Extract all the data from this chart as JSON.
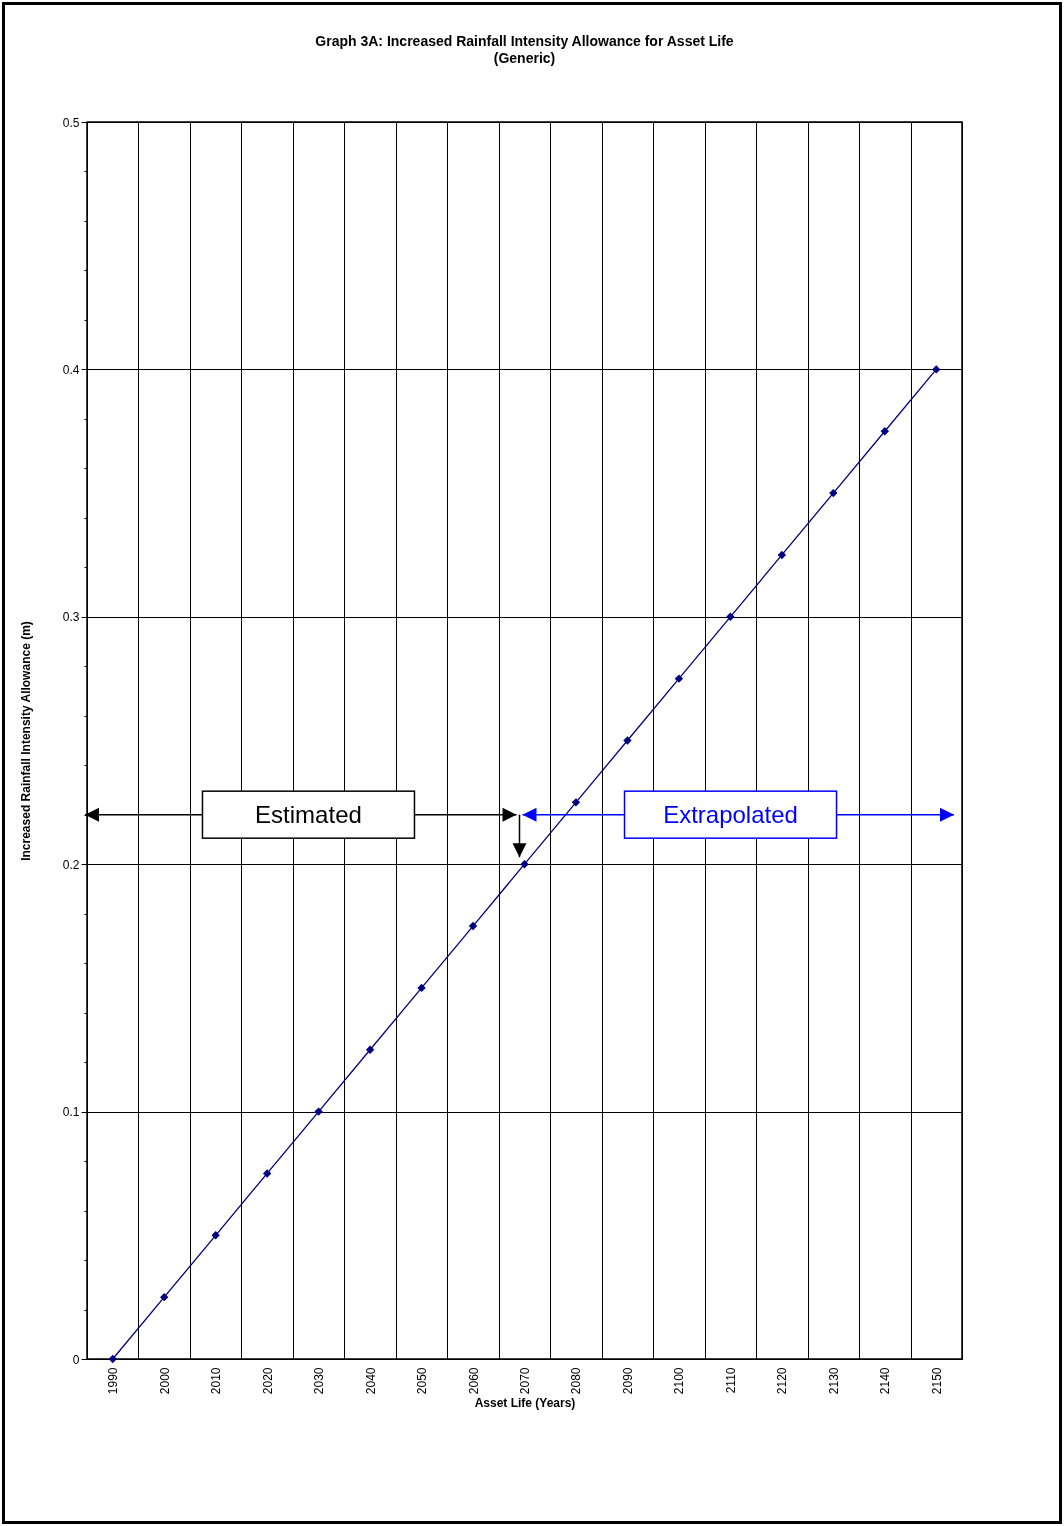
{
  "chart_data": {
    "type": "line",
    "title": "Graph 3A:     Increased Rainfall Intensity Allowance for Asset Life",
    "subtitle": "(Generic)",
    "xlabel": "Asset Life (Years)",
    "ylabel": "Increased Rainfall Intensity Allowance (m)",
    "categories": [
      "1990",
      "2000",
      "2010",
      "2020",
      "2030",
      "2040",
      "2050",
      "2060",
      "2070",
      "2080",
      "2090",
      "2100",
      "2110",
      "2120",
      "2130",
      "2140",
      "2150"
    ],
    "series": [
      {
        "color": "#000080",
        "values": [
          0,
          0.025,
          0.05,
          0.075,
          0.1,
          0.125,
          0.15,
          0.175,
          0.2,
          0.225,
          0.25,
          0.275,
          0.3,
          0.325,
          0.35,
          0.375,
          0.4
        ]
      }
    ],
    "ylim": [
      0,
      0.5
    ],
    "yticks": [
      0,
      {
        "value": 0.02,
        "label": null
      },
      {
        "value": 0.04,
        "label": null
      },
      {
        "value": 0.06,
        "label": null
      },
      {
        "value": 0.08,
        "label": null
      },
      0.1,
      {
        "value": 0.12,
        "label": null
      },
      {
        "value": 0.14,
        "label": null
      },
      {
        "value": 0.16,
        "label": null
      },
      {
        "value": 0.18,
        "label": null
      },
      0.2,
      {
        "value": 0.22,
        "label": null
      },
      {
        "value": 0.24,
        "label": null
      },
      {
        "value": 0.26,
        "label": null
      },
      {
        "value": 0.28,
        "label": null
      },
      0.3,
      {
        "value": 0.32,
        "label": null
      },
      {
        "value": 0.34,
        "label": null
      },
      {
        "value": 0.36,
        "label": null
      },
      {
        "value": 0.38,
        "label": null
      },
      0.4,
      {
        "value": 0.42,
        "label": null
      },
      {
        "value": 0.44,
        "label": null
      },
      {
        "value": 0.46,
        "label": null
      },
      {
        "value": 0.48,
        "label": null
      },
      0.5
    ],
    "annotations": [
      "Estimated",
      "Extrapolated"
    ],
    "grid": true,
    "marker": "diamond",
    "line_style": "solid"
  }
}
